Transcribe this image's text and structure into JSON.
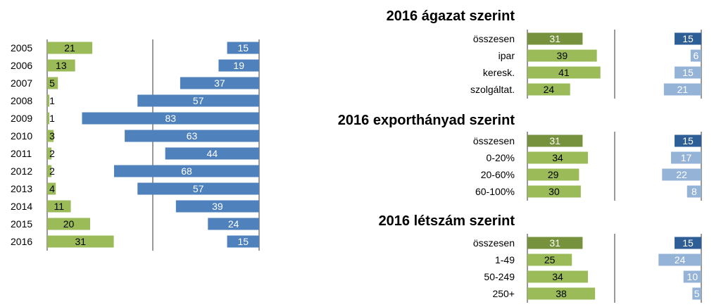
{
  "colors": {
    "green": "#9bbb59",
    "dark_green": "#76923c",
    "blue": "#4f81bd",
    "dark_blue": "#2e5e96",
    "light_blue": "#95b3d7",
    "axis": "#333333",
    "text": "#000000",
    "bar_text": "#ffffff"
  },
  "chart_data": [
    {
      "type": "bar",
      "orientation": "horizontal",
      "title": "",
      "categories": [
        "2005",
        "2006",
        "2007",
        "2008",
        "2009",
        "2010",
        "2011",
        "2012",
        "2013",
        "2014",
        "2015",
        "2016"
      ],
      "series": [
        {
          "values": [
            21,
            13,
            5,
            1,
            1,
            3,
            2,
            2,
            4,
            11,
            20,
            31
          ]
        },
        {
          "values": [
            15,
            19,
            37,
            57,
            83,
            63,
            44,
            68,
            57,
            39,
            24,
            15
          ]
        }
      ]
    },
    {
      "type": "bar",
      "orientation": "horizontal",
      "title": "2016 ágazat szerint",
      "categories": [
        "összesen",
        "ipar",
        "keresk.",
        "szolgáltat."
      ],
      "series": [
        {
          "values": [
            31,
            39,
            41,
            24
          ]
        },
        {
          "values": [
            15,
            6,
            15,
            21
          ]
        }
      ]
    },
    {
      "type": "bar",
      "orientation": "horizontal",
      "title": "2016 exporthányad szerint",
      "categories": [
        "összesen",
        "0-20%",
        "20-60%",
        "60-100%"
      ],
      "series": [
        {
          "values": [
            31,
            34,
            29,
            30
          ]
        },
        {
          "values": [
            15,
            17,
            22,
            8
          ]
        }
      ]
    },
    {
      "type": "bar",
      "orientation": "horizontal",
      "title": "2016 létszám szerint",
      "categories": [
        "összesen",
        "1-49",
        "50-249",
        "250+"
      ],
      "series": [
        {
          "values": [
            31,
            25,
            34,
            38
          ]
        },
        {
          "values": [
            15,
            24,
            10,
            5
          ]
        }
      ]
    }
  ]
}
